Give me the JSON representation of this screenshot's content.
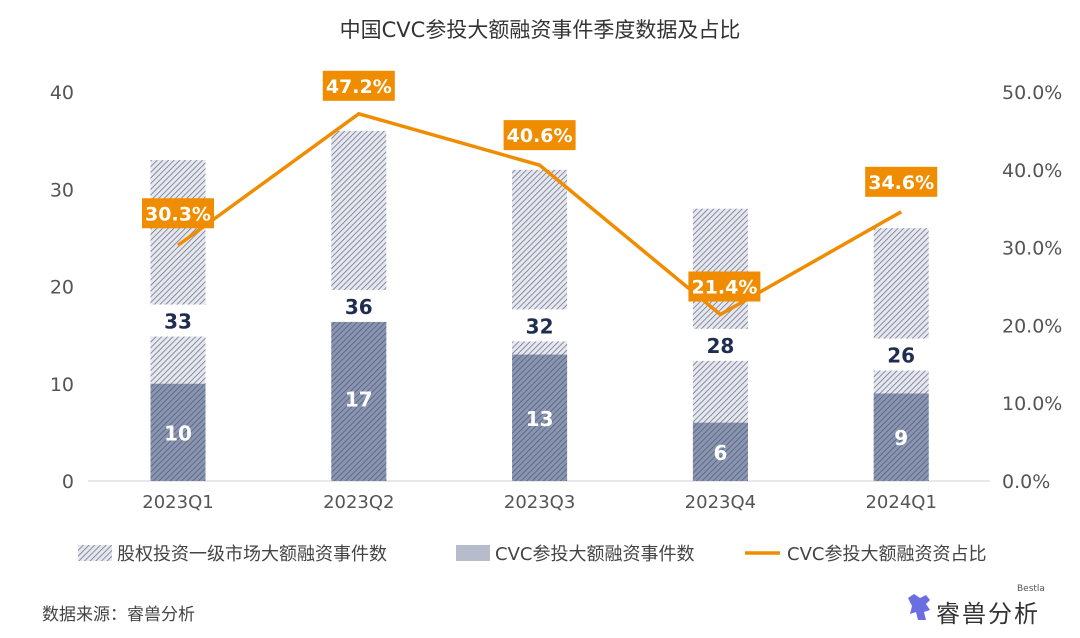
{
  "chart_data": {
    "type": "bar+line",
    "title": "中国CVC参投大额融资事件季度数据及占比",
    "categories": [
      "2023Q1",
      "2023Q2",
      "2023Q3",
      "2023Q4",
      "2024Q1"
    ],
    "series": [
      {
        "name": "股权投资一级市场大额融资事件数",
        "type": "bar",
        "axis": "left",
        "values": [
          33,
          36,
          32,
          28,
          26
        ],
        "color": "#9aa0ad"
      },
      {
        "name": "CVC参投大额融资事件数",
        "type": "bar",
        "axis": "left",
        "values": [
          10,
          17,
          13,
          6,
          9
        ],
        "color": "#6b7898"
      },
      {
        "name": "CVC参投大额融资资占比",
        "type": "line",
        "axis": "right",
        "values": [
          30.3,
          47.2,
          40.6,
          21.4,
          34.6
        ],
        "labels": [
          "30.3%",
          "47.2%",
          "40.6%",
          "21.4%",
          "34.6%"
        ],
        "color": "#f08c00"
      }
    ],
    "left_axis": {
      "ylim": [
        0,
        40
      ],
      "ticks": [
        "0",
        "10",
        "20",
        "30",
        "40"
      ]
    },
    "right_axis": {
      "ylim": [
        0,
        50
      ],
      "ticks": [
        "0.0%",
        "10.0%",
        "20.0%",
        "30.0%",
        "40.0%",
        "50.0%"
      ]
    },
    "legend_placement": "bottom",
    "grid": false
  },
  "source": "数据来源：睿兽分析",
  "logo": {
    "text": "睿兽分析",
    "sub": "Bestla"
  }
}
